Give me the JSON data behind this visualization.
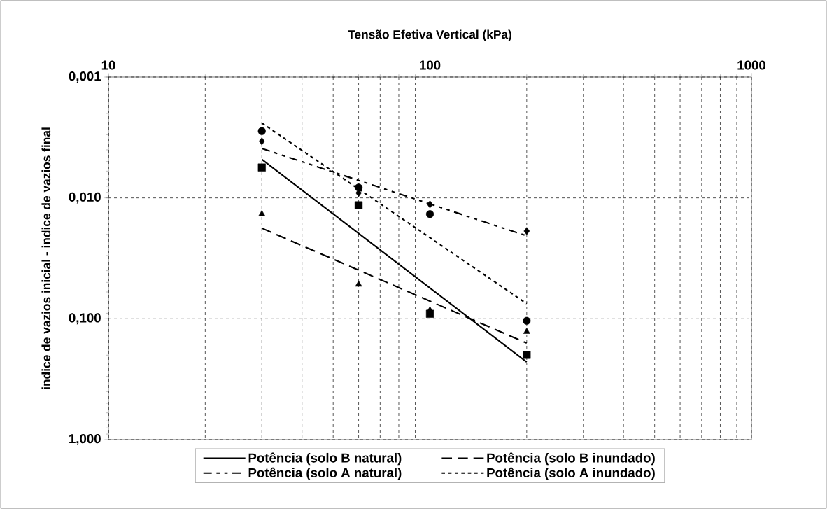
{
  "chart_data": {
    "type": "scatter",
    "xlabel": "Tensão Efetiva Vertical (kPa)",
    "ylabel": "indice de vazios inicial - indice de vazios final",
    "log": "xy",
    "xlim": [
      10,
      1000
    ],
    "ylim": [
      1,
      0.001
    ],
    "xticks": [
      10,
      100,
      1000
    ],
    "yticks": [
      {
        "value": 0.001,
        "label": "0,001"
      },
      {
        "value": 0.01,
        "label": "0,010"
      },
      {
        "value": 0.1,
        "label": "0,100"
      },
      {
        "value": 1,
        "label": "1,000"
      }
    ],
    "grid": true,
    "legend": "bottom",
    "series": [
      {
        "marker": "circle",
        "color": "#000000",
        "x": [
          30,
          60,
          100,
          200
        ],
        "values": [
          0.0028,
          0.0082,
          0.0136,
          0.104
        ]
      },
      {
        "marker": "diamond",
        "color": "#000000",
        "x": [
          30,
          60,
          100,
          200
        ],
        "values": [
          0.0034,
          0.0091,
          0.0113,
          0.0188
        ]
      },
      {
        "marker": "square",
        "color": "#000000",
        "x": [
          30,
          60,
          100,
          200
        ],
        "values": [
          0.0056,
          0.0115,
          0.091,
          0.199
        ]
      },
      {
        "marker": "triangle",
        "color": "#000000",
        "x": [
          30,
          60,
          100,
          200
        ],
        "values": [
          0.0136,
          0.052,
          0.085,
          0.128
        ]
      },
      {
        "name": "Potência (solo B natural)",
        "type": "line",
        "line_style": "solid",
        "marker": "none",
        "color": "#000000",
        "x": [
          30,
          200
        ],
        "values": [
          0.0048,
          0.228
        ]
      },
      {
        "name": "Potência (solo B inundado)",
        "type": "line",
        "line_style": "dashed",
        "marker": "none",
        "color": "#000000",
        "x": [
          30,
          200
        ],
        "values": [
          0.0178,
          0.159
        ]
      },
      {
        "name": "Potência (solo A natural)",
        "type": "line",
        "line_style": "dashdot",
        "marker": "none",
        "color": "#000000",
        "x": [
          30,
          200
        ],
        "values": [
          0.0039,
          0.0206
        ]
      },
      {
        "name": "Potência (solo A inundado)",
        "type": "line",
        "line_style": "dotted",
        "marker": "none",
        "color": "#000000",
        "x": [
          30,
          200
        ],
        "values": [
          0.0024,
          0.075
        ]
      }
    ]
  }
}
